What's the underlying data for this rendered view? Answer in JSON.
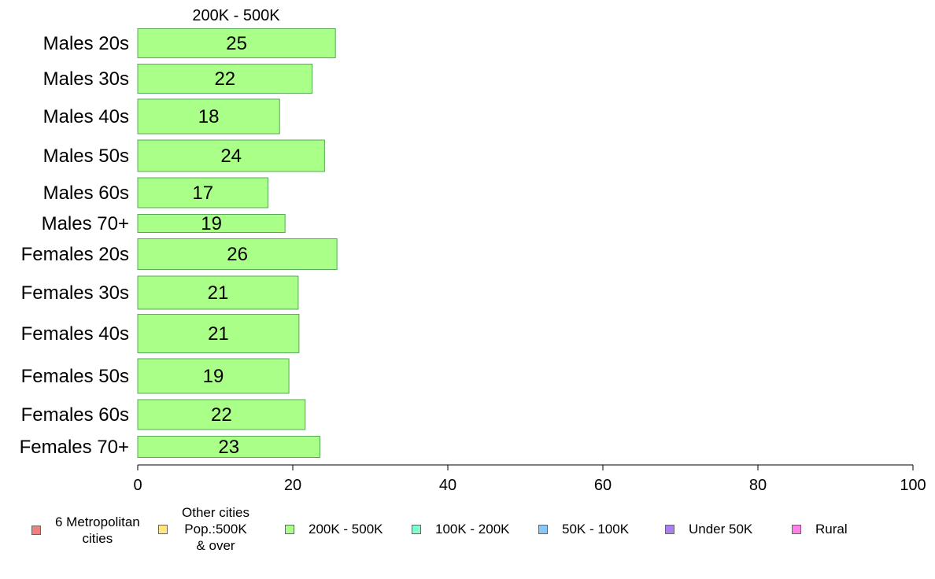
{
  "chart_data": {
    "type": "bar",
    "orientation": "horizontal",
    "title": "200K - 500K",
    "categories": [
      "Males 20s",
      "Males 30s",
      "Males 40s",
      "Males 50s",
      "Males 60s",
      "Males 70+",
      "Females 20s",
      "Females 30s",
      "Females 40s",
      "Females 50s",
      "Females 60s",
      "Females 70+"
    ],
    "values": [
      25,
      22,
      18,
      24,
      17,
      19,
      26,
      21,
      21,
      19,
      22,
      23
    ],
    "bar_display_values": [
      25.5,
      22.5,
      18.3,
      24.1,
      16.8,
      19.0,
      25.7,
      20.7,
      20.8,
      19.5,
      21.6,
      23.5
    ],
    "xlim": [
      0,
      100
    ],
    "xticks": [
      0,
      20,
      40,
      60,
      80,
      100
    ],
    "xlabel": "",
    "ylabel": "",
    "grid": false,
    "bar_color": "#aaff88",
    "bar_edge_color": "#55aa55",
    "legend": {
      "placement": "bottom",
      "items": [
        {
          "label": "6 Metropolitan\n cities",
          "color": "#f08080"
        },
        {
          "label": "Other cities\nPop.:500K\n & over",
          "color": "#ffe680"
        },
        {
          "label": "200K - 500K",
          "color": "#aaff88"
        },
        {
          "label": "100K - 200K",
          "color": "#80ffcc"
        },
        {
          "label": "50K - 100K",
          "color": "#88c8f8"
        },
        {
          "label": "Under 50K",
          "color": "#aa80f0"
        },
        {
          "label": "Rural",
          "color": "#ff80e8"
        }
      ]
    }
  }
}
